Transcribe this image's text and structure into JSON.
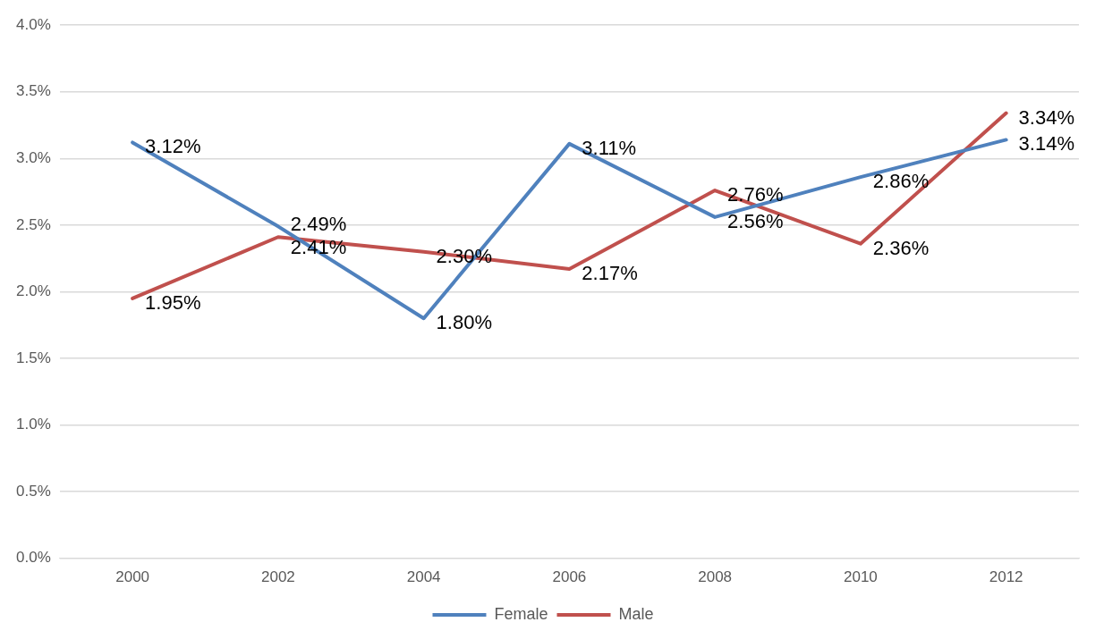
{
  "chart_data": {
    "type": "line",
    "categories": [
      "2000",
      "2002",
      "2004",
      "2006",
      "2008",
      "2010",
      "2012"
    ],
    "series": [
      {
        "name": "Female",
        "color": "#4f81bd",
        "values": [
          3.12,
          2.49,
          1.8,
          3.11,
          2.56,
          2.86,
          3.14
        ],
        "value_labels": [
          "3.12%",
          "2.49%",
          "1.80%",
          "3.11%",
          "2.56%",
          "2.86%",
          "3.14%"
        ]
      },
      {
        "name": "Male",
        "color": "#c0504d",
        "values": [
          1.95,
          2.41,
          2.3,
          2.17,
          2.76,
          2.36,
          3.34
        ],
        "value_labels": [
          "1.95%",
          "2.41%",
          "2.30%",
          "2.17%",
          "2.76%",
          "2.36%",
          "3.34%"
        ]
      }
    ],
    "ylim": [
      0,
      4
    ],
    "yticks": [
      {
        "value": 0,
        "label": "0.0%"
      },
      {
        "value": 0.5,
        "label": "0.5%"
      },
      {
        "value": 1,
        "label": "1.0%"
      },
      {
        "value": 1.5,
        "label": "1.5%"
      },
      {
        "value": 2,
        "label": "2.0%"
      },
      {
        "value": 2.5,
        "label": "2.5%"
      },
      {
        "value": 3,
        "label": "3.0%"
      },
      {
        "value": 3.5,
        "label": "3.5%"
      },
      {
        "value": 4,
        "label": "4.0%"
      }
    ],
    "grid": "y",
    "legend": "bottom",
    "marker": "none",
    "line_style": "solid"
  }
}
